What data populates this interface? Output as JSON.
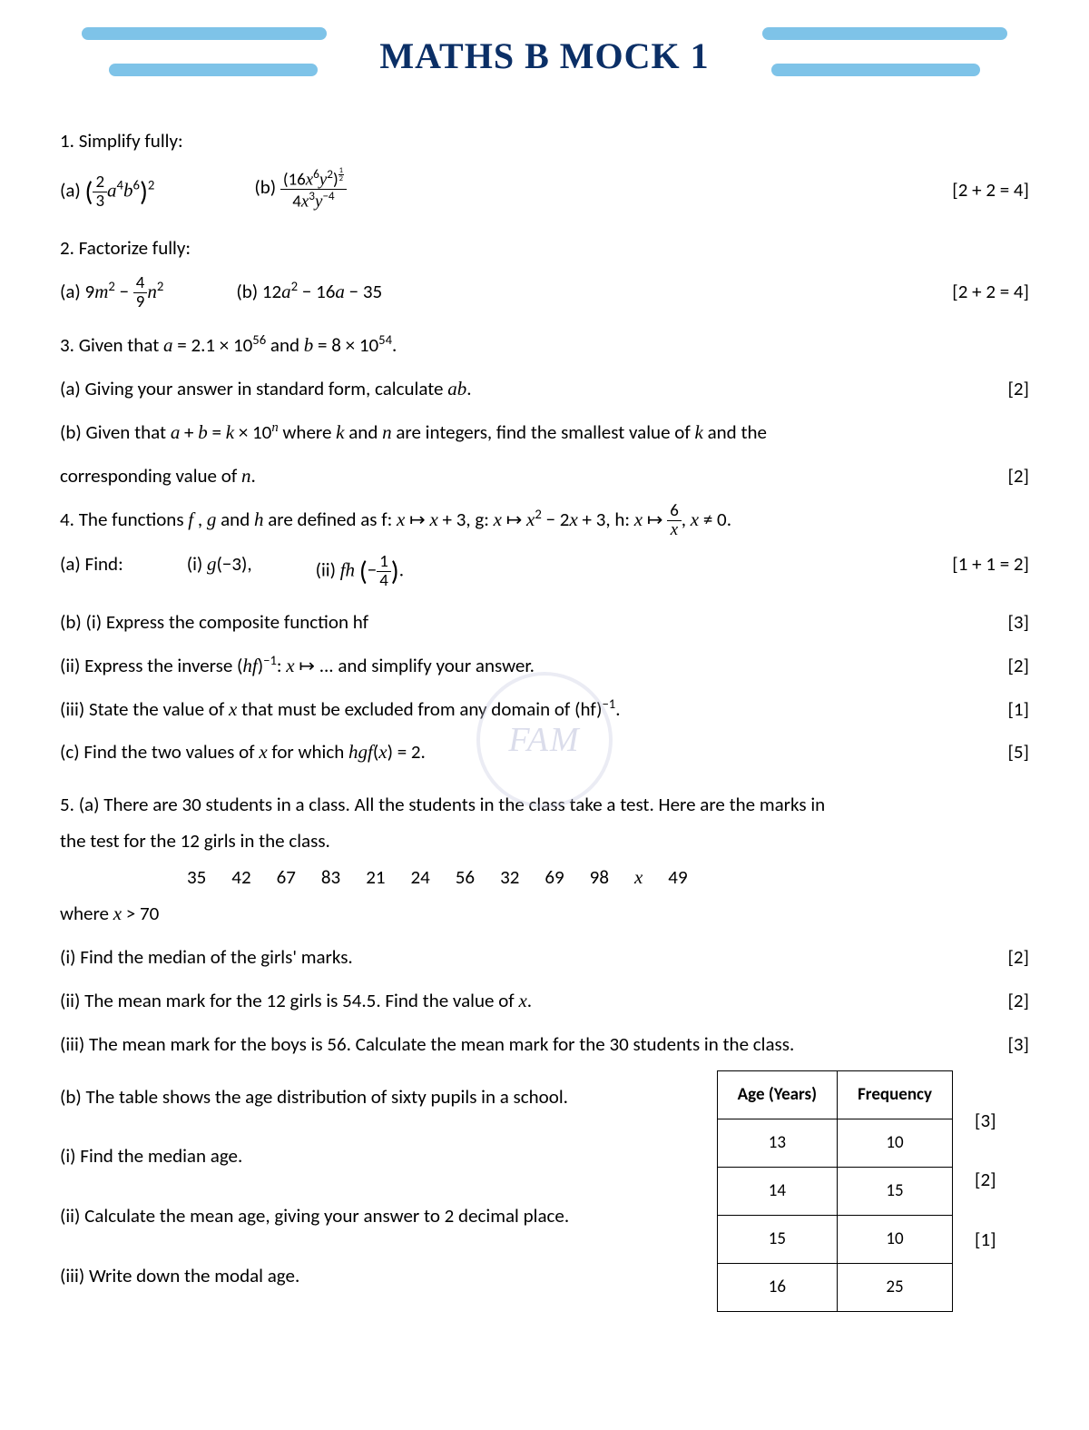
{
  "title": "MATHS B MOCK 1",
  "colors": {
    "bar": "#7ec3e8",
    "title": "#0b2f66",
    "text": "#000000",
    "bg": "#ffffff",
    "watermark": "#c7c9e0"
  },
  "watermark_text": "FAM",
  "q1": {
    "prompt": "1. Simplify fully:",
    "a_label": "(a)",
    "b_label": "(b)",
    "marks": "[2 + 2 = 4]"
  },
  "q2": {
    "prompt": "2. Factorize fully:",
    "a_label": "(a)",
    "b_label": "(b)",
    "marks": "[2 + 2 = 4]"
  },
  "q3": {
    "intro_pre": "3. Given that ",
    "intro_post": ".",
    "a": "(a) Giving your answer in standard form, calculate ",
    "a_marks": "[2]",
    "b_pre": "(b) Given that ",
    "b_mid": " where ",
    "b_post": " are integers, find the smallest value of ",
    "b_tail": " and the",
    "b_line2_pre": "corresponding value of ",
    "b_marks": "[2]"
  },
  "q4": {
    "intro": "4. The functions ",
    "intro_mid": " and ",
    "intro_def": " are defined as f: ",
    "a_label": "(a) Find:",
    "a_i": "(i) ",
    "a_ii": "(ii) ",
    "a_marks": "[1 + 1 = 2]",
    "b_i": "(b) (i) Express the composite function hf",
    "b_i_marks": "[3]",
    "b_ii": "(ii) Express the inverse ",
    "b_ii_tail": " ... and simplify your answer.",
    "b_ii_marks": "[2]",
    "b_iii_pre": "(iii) State the value of ",
    "b_iii_post": " that must be excluded from any domain of (hf)",
    "b_iii_marks": "[1]",
    "c_pre": "(c) Find the two values of ",
    "c_post": " for which ",
    "c_marks": "[5]"
  },
  "q5": {
    "a_intro1": "5. (a) There are 30 students in a class. All the students in the class take a test. Here are the marks in",
    "a_intro2": "the test for the 12 girls in the class.",
    "marks_list": [
      "35",
      "42",
      "67",
      "83",
      "21",
      "24",
      "56",
      "32",
      "69",
      "98",
      "𝑥",
      "49"
    ],
    "where": "where ",
    "a_i": "(i) Find the median of the girls' marks.",
    "a_i_marks": "[2]",
    "a_ii_pre": "(ii) The mean mark for the 12 girls is 54.5. Find the value of ",
    "a_ii_marks": "[2]",
    "a_iii": "(iii)  The mean mark for the boys is 56. Calculate the mean mark for the 30 students in the class.",
    "a_iii_marks": "[3]",
    "b_intro": "(b) The table shows the age distribution of sixty pupils in a school.",
    "b_i": "(i) Find the median age.",
    "b_i_marks": "[3]",
    "b_ii": "(ii) Calculate the mean age, giving your answer to 2 decimal place.",
    "b_ii_marks": "[2]",
    "b_iii": "(iii) Write down the modal age.",
    "b_iii_marks": "[1]",
    "table": {
      "headers": [
        "Age (Years)",
        "Frequency"
      ],
      "rows": [
        [
          "13",
          "10"
        ],
        [
          "14",
          "15"
        ],
        [
          "15",
          "10"
        ],
        [
          "16",
          "25"
        ]
      ]
    }
  }
}
